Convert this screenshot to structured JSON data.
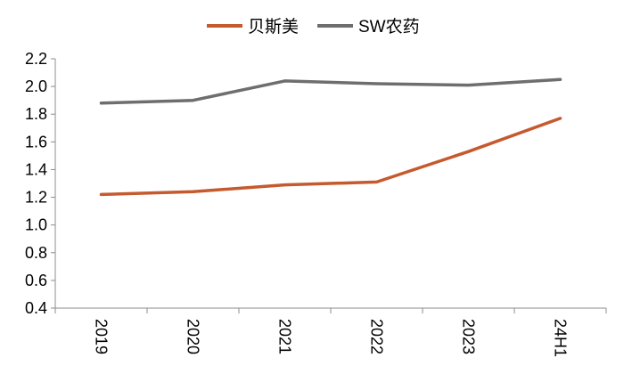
{
  "chart_data": {
    "type": "line",
    "categories": [
      "2019",
      "2020",
      "2021",
      "2022",
      "2023",
      "24H1"
    ],
    "series": [
      {
        "name": "贝斯美",
        "color": "#c55a2e",
        "values": [
          1.22,
          1.24,
          1.29,
          1.31,
          1.53,
          1.77
        ]
      },
      {
        "name": "SW农药",
        "color": "#6e6e6e",
        "values": [
          1.88,
          1.9,
          2.04,
          2.02,
          2.01,
          2.05
        ]
      }
    ],
    "ylim": [
      0.4,
      2.2
    ],
    "yticks": [
      "0.4",
      "0.6",
      "0.8",
      "1.0",
      "1.2",
      "1.4",
      "1.6",
      "1.8",
      "2.0",
      "2.2"
    ],
    "legend_position": "top-center",
    "grid": false
  }
}
